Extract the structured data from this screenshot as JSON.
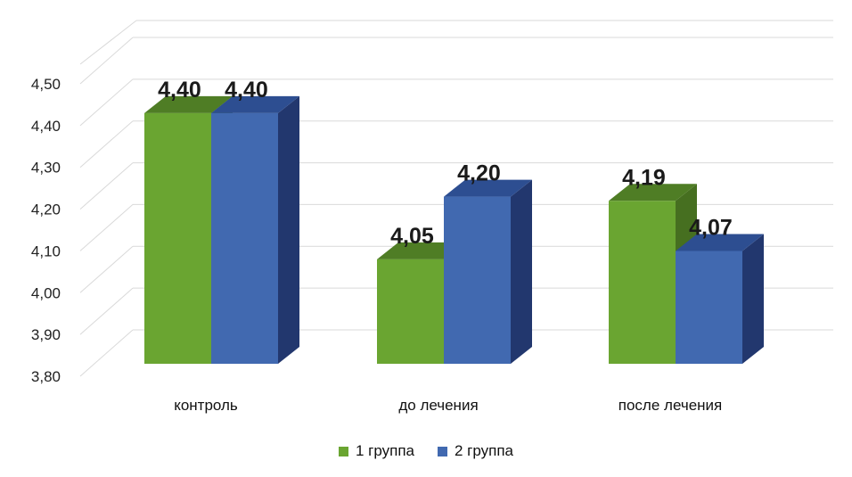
{
  "chart_data": {
    "type": "bar",
    "categories": [
      "контроль",
      "до лечения",
      "после лечения"
    ],
    "series": [
      {
        "name": "1 группа",
        "values": [
          4.4,
          4.05,
          4.19
        ],
        "labels": [
          "4,40",
          "4,05",
          "4,19"
        ],
        "color": "#6aa531"
      },
      {
        "name": "2 группа",
        "values": [
          4.4,
          4.2,
          4.07
        ],
        "labels": [
          "4,40",
          "4,20",
          "4,07"
        ],
        "color": "#4169b0"
      }
    ],
    "ylim": [
      3.8,
      4.5
    ],
    "yticks": [
      "3,80",
      "3,90",
      "4,00",
      "4,10",
      "4,20",
      "4,30",
      "4,40",
      "4,50"
    ],
    "grid": true,
    "legend_position": "bottom",
    "style": "3d-clustered-column"
  }
}
